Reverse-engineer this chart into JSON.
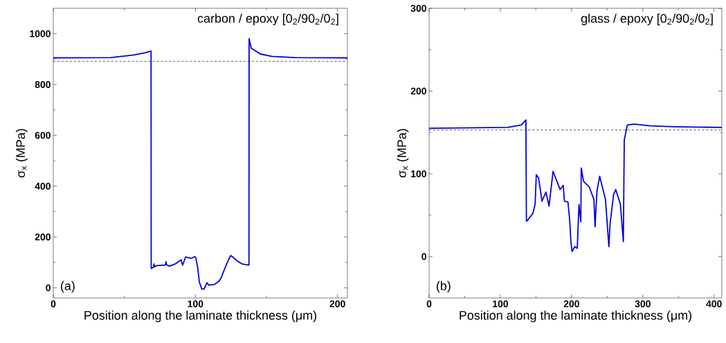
{
  "chart_data": [
    {
      "type": "line",
      "title": "carbon / epoxy [0$_{2}$/90$_{2}$/0$_{2}$]",
      "xlabel": "Position along the laminate thickness (μm)",
      "ylabel": "σ$_{x}$  (MPa)",
      "annotations": [
        "(a)"
      ],
      "color": "#0000dd",
      "line_style": "solid",
      "xlim": [
        0,
        207
      ],
      "ylim": [
        -40,
        1100
      ],
      "xticks": [
        0,
        100,
        200
      ],
      "yticks": [
        0,
        200,
        400,
        600,
        800,
        1000
      ],
      "x": [
        0,
        40.4,
        56.6,
        64.7,
        68.8,
        68.9,
        70.4,
        70.9,
        71.2,
        72.8,
        79.0,
        79.3,
        79.6,
        81.8,
        85.8,
        89.9,
        91,
        93.1,
        97.2,
        99.6,
        100.4,
        101.7,
        102.8,
        104.5,
        106.1,
        108.2,
        109.3,
        113.4,
        116.6,
        118.2,
        120.7,
        122.3,
        124.8,
        126.4,
        129.6,
        132.8,
        135.3,
        137.7,
        137.8,
        139.3,
        145.8,
        153.8,
        170,
        207
      ],
      "values": [
        905,
        906,
        916,
        925,
        932,
        76,
        80,
        94,
        83,
        87,
        90,
        103,
        91,
        85,
        94,
        110,
        89,
        121,
        116,
        123,
        116,
        76,
        22,
        -5,
        -5,
        20,
        11,
        13,
        26,
        40,
        76,
        98,
        127,
        121,
        105,
        94,
        91,
        89,
        981,
        943,
        920,
        911,
        906,
        905
      ],
      "ref_lines": [
        {
          "axis": "y",
          "value": 891,
          "color": "#000000",
          "line_style": "dashed"
        }
      ]
    },
    {
      "type": "line",
      "title": "glass / epoxy  [0$_{2}$/90$_{2}$/0$_{2}$]",
      "xlabel": "Position along the laminate thickness (μm)",
      "ylabel": "σ$_{x}$  (MPa)",
      "annotations": [
        "(b)"
      ],
      "color": "#0000dd",
      "line_style": "solid",
      "xlim": [
        0,
        411
      ],
      "ylim": [
        -50,
        300
      ],
      "xticks": [
        0,
        100,
        200,
        300,
        400
      ],
      "yticks": [
        0,
        100,
        200,
        300
      ],
      "x": [
        0,
        110,
        129.4,
        135.9,
        136.6,
        137.4,
        145.6,
        148.8,
        150.5,
        153.7,
        158.5,
        164,
        168.4,
        174,
        178,
        184,
        188.3,
        190,
        194.9,
        197.4,
        199,
        200.7,
        204.5,
        208,
        210.4,
        213,
        213.6,
        216.8,
        224.9,
        231.4,
        233,
        235.6,
        239.5,
        247.6,
        252.4,
        254.1,
        259,
        262,
        268.6,
        272.7,
        274,
        278.3,
        288,
        310.7,
        343,
        411
      ],
      "values": [
        155,
        156,
        159,
        165,
        43,
        43,
        52,
        63,
        99,
        95,
        67,
        78,
        61,
        103,
        94,
        81,
        86,
        67,
        66,
        44,
        19,
        6,
        12,
        10,
        63,
        42,
        107,
        91,
        84,
        69,
        36,
        79,
        97,
        69,
        12,
        40,
        75,
        81,
        63,
        18,
        141,
        159,
        160,
        158,
        157,
        156
      ],
      "ref_lines": [
        {
          "axis": "y",
          "value": 153,
          "color": "#000000",
          "line_style": "dashed"
        }
      ]
    }
  ]
}
